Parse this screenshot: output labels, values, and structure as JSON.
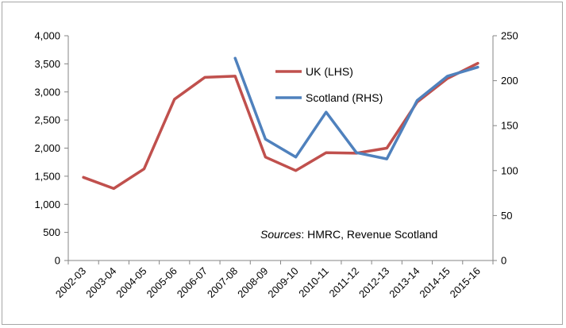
{
  "chart_data": {
    "type": "line",
    "categories": [
      "2002-03",
      "2003-04",
      "2004-05",
      "2005-06",
      "2006-07",
      "2007-08",
      "2008-09",
      "2009-10",
      "2010-11",
      "2011-12",
      "2012-13",
      "2013-14",
      "2014-15",
      "2015-16"
    ],
    "series": [
      {
        "name": "UK (LHS)",
        "axis": "left",
        "color": "#c0504d",
        "values": [
          1480,
          1280,
          1630,
          2870,
          3260,
          3280,
          1840,
          1600,
          1920,
          1910,
          2000,
          2820,
          3240,
          3510
        ]
      },
      {
        "name": "Scotland (RHS)",
        "axis": "right",
        "color": "#4f81bd",
        "values": [
          null,
          null,
          null,
          null,
          null,
          225,
          135,
          115,
          165,
          120,
          113,
          178,
          205,
          215
        ]
      }
    ],
    "y_left": {
      "ylim": [
        0,
        4000
      ],
      "ticks": [
        "0",
        "500",
        "1,000",
        "1,500",
        "2,000",
        "2,500",
        "3,000",
        "3,500",
        "4,000"
      ]
    },
    "y_right": {
      "ylim": [
        0,
        250
      ],
      "ticks": [
        "0",
        "50",
        "100",
        "150",
        "200",
        "250"
      ]
    },
    "grid": false,
    "legend_position": "top-center",
    "annotation": {
      "italic": "Sources",
      "text": ": HMRC, Revenue Scotland"
    }
  }
}
